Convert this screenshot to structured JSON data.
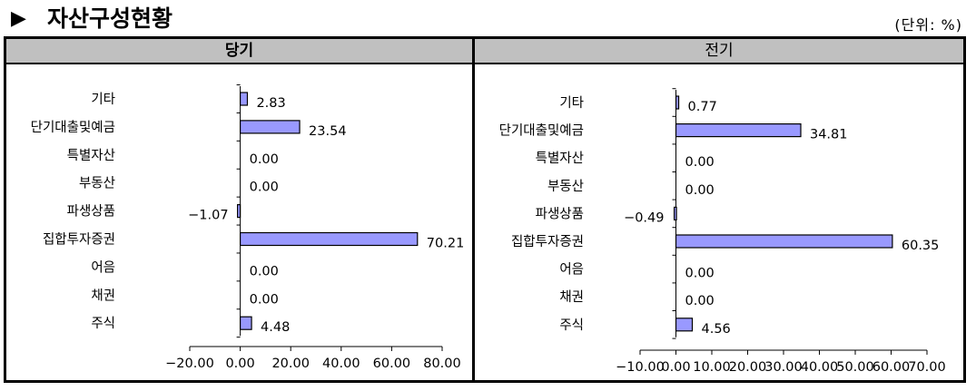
{
  "page": {
    "marker": "▶",
    "title": "자산구성현황",
    "unit": "(단위: %)"
  },
  "chart_data": [
    {
      "type": "bar",
      "orientation": "horizontal",
      "panel_title": "당기",
      "categories": [
        "기타",
        "단기대출및예금",
        "특별자산",
        "부동산",
        "파생상품",
        "집합투자증권",
        "어음",
        "채권",
        "주식"
      ],
      "values": [
        2.83,
        23.54,
        0.0,
        0.0,
        -1.07,
        70.21,
        0.0,
        0.0,
        4.48
      ],
      "value_labels": [
        "2.83",
        "23.54",
        "0.00",
        "0.00",
        "-1.07",
        "70.21",
        "0.00",
        "0.00",
        "4.48"
      ],
      "xlim": [
        -20,
        80
      ],
      "xticks": [
        -20,
        0,
        20,
        40,
        60,
        80
      ],
      "xtick_labels": [
        "-20.00",
        "0.00",
        "20.00",
        "40.00",
        "60.00",
        "80.00"
      ],
      "bar_color": "#9999ff",
      "grid": false,
      "legend": "none"
    },
    {
      "type": "bar",
      "orientation": "horizontal",
      "panel_title": "전기",
      "categories": [
        "기타",
        "단기대출및예금",
        "특별자산",
        "부동산",
        "파생상품",
        "집합투자증권",
        "어음",
        "채권",
        "주식"
      ],
      "values": [
        0.77,
        34.81,
        0.0,
        0.0,
        -0.49,
        60.35,
        0.0,
        0.0,
        4.56
      ],
      "value_labels": [
        "0.77",
        "34.81",
        "0.00",
        "0.00",
        "-0.49",
        "60.35",
        "0.00",
        "0.00",
        "4.56"
      ],
      "xlim": [
        -10,
        70
      ],
      "xticks": [
        -10,
        0,
        10,
        20,
        30,
        40,
        50,
        60,
        70
      ],
      "xtick_labels": [
        "-10.00",
        "0.00",
        "10.00",
        "20.00",
        "30.00",
        "40.00",
        "50.00",
        "60.00",
        "70.00"
      ],
      "bar_color": "#9999ff",
      "grid": false,
      "legend": "none"
    }
  ]
}
